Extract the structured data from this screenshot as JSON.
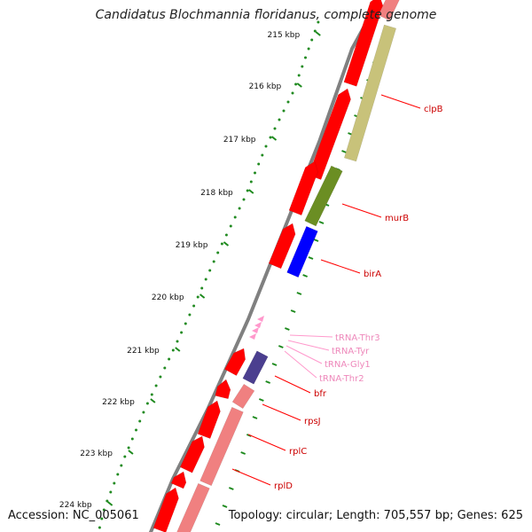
{
  "title": "Candidatus Blochmannia floridanus, complete genome",
  "footer": {
    "accession": "Accession: NC_005061",
    "topology": "Topology: circular; Length: 705,557 bp; Genes: 625"
  },
  "colors": {
    "backbone": "#808080",
    "dot": "#228b22",
    "tick": "#1e8a1e",
    "cds": "#ff0000",
    "gene_label": "#cc0000",
    "trna": "#ff99cc",
    "trna_label": "#ee88bb"
  },
  "scale": {
    "unit": "kbp",
    "labels": [
      "215 kbp",
      "216 kbp",
      "217 kbp",
      "218 kbp",
      "219 kbp",
      "220 kbp",
      "221 kbp",
      "222 kbp",
      "223 kbp",
      "224 kbp"
    ]
  },
  "genes": [
    {
      "name": "clpB",
      "color": "#c8c27a"
    },
    {
      "name": "murB",
      "color": "#6b8e23"
    },
    {
      "name": "birA",
      "color": "#0000ff"
    },
    {
      "name": "bfr",
      "color": "#4b3f8f"
    },
    {
      "name": "rpsJ",
      "color": "#f08080"
    },
    {
      "name": "rplC",
      "color": "#f08080"
    },
    {
      "name": "rplD",
      "color": "#f08080"
    }
  ],
  "trnas": [
    "tRNA-Thr3",
    "tRNA-Tyr",
    "tRNA-Gly1",
    "tRNA-Thr2"
  ]
}
